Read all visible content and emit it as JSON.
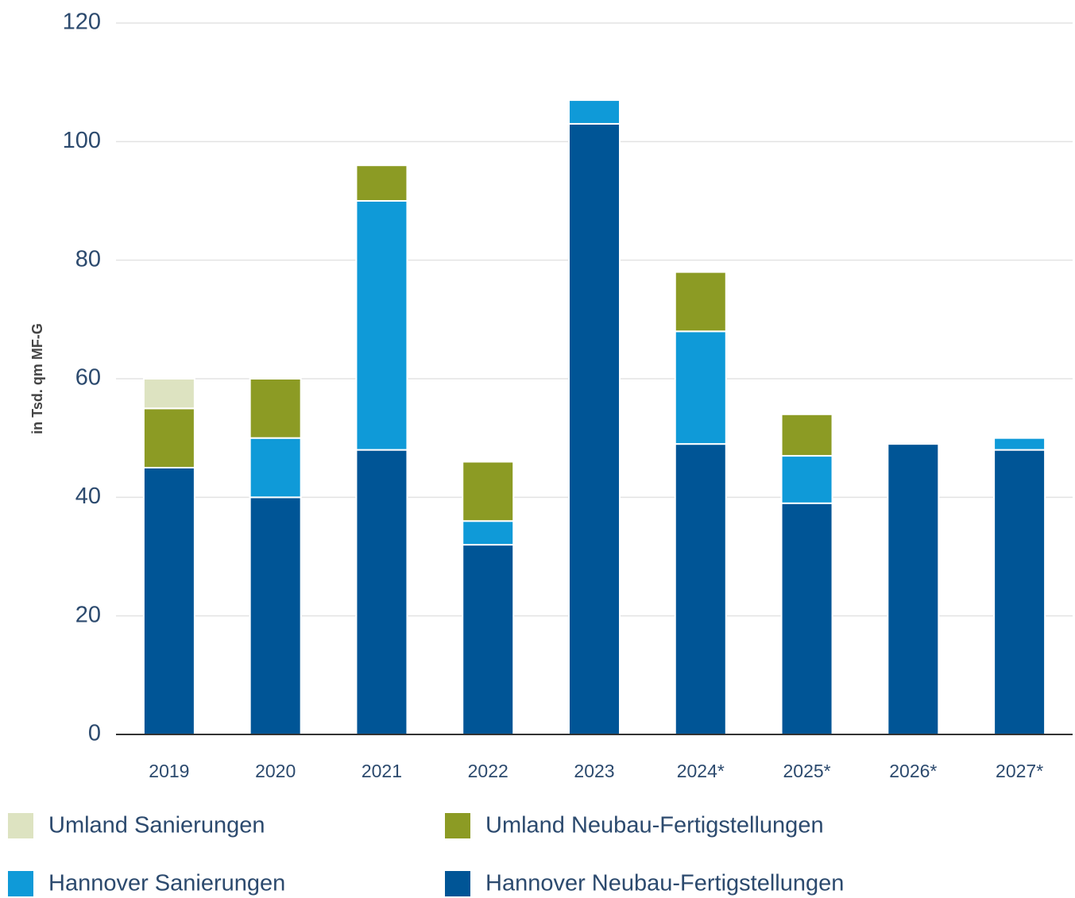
{
  "chart_data": {
    "type": "stacked_bar",
    "y_axis_label": "in Tsd. qm MF-G",
    "categories": [
      "2019",
      "2020",
      "2021",
      "2022",
      "2023",
      "2024*",
      "2025*",
      "2026*",
      "2027*"
    ],
    "series": [
      {
        "name": "Umland Sanierungen",
        "color": "#dde3c1",
        "values": [
          5,
          0,
          0,
          0,
          0,
          0,
          0,
          0,
          0
        ]
      },
      {
        "name": "Umland Neubau-Fertigstellungen",
        "color": "#8c9b24",
        "values": [
          10,
          10,
          6,
          10,
          0,
          10,
          7,
          0,
          0
        ]
      },
      {
        "name": "Hannover Sanierungen",
        "color": "#0f9ad8",
        "values": [
          0,
          10,
          42,
          4,
          4,
          19,
          8,
          0,
          2
        ]
      },
      {
        "name": "Hannover Neubau-Fertigstellungen",
        "color": "#005596",
        "values": [
          45,
          40,
          48,
          32,
          103,
          49,
          39,
          49,
          48
        ]
      }
    ],
    "ylim": [
      0,
      120
    ],
    "yticks": [
      0,
      20,
      40,
      60,
      80,
      100,
      120
    ],
    "grid": true
  }
}
